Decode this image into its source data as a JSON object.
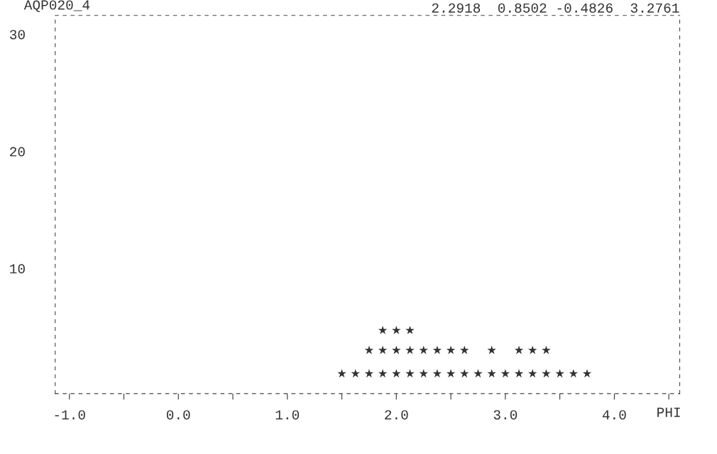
{
  "chart_data": {
    "type": "scatter",
    "title": "AQP020_4",
    "annotations": [
      "2.2918  0.8502 -0.4826  3.2761"
    ],
    "xlabel": "PHI",
    "series": [
      {
        "color": "#333333",
        "x": [
          1.5,
          1.625,
          1.75,
          1.875,
          2.0,
          2.125,
          2.25,
          2.375,
          2.5,
          2.625,
          2.75,
          2.875,
          3.0,
          3.125,
          3.25,
          3.375,
          3.5,
          3.625,
          3.75
        ],
        "values": [
          1,
          1,
          1,
          1,
          1,
          1,
          1,
          1,
          1,
          1,
          1,
          1,
          1,
          1,
          1,
          1,
          1,
          1,
          1
        ]
      },
      {
        "color": "#333333",
        "x": [
          1.75,
          1.875,
          2.0,
          2.125,
          2.25,
          2.375,
          2.5,
          2.625,
          2.875,
          3.125,
          3.25,
          3.375
        ],
        "values": [
          3,
          3,
          3,
          3,
          3,
          3,
          3,
          3,
          3,
          3,
          3,
          3
        ]
      },
      {
        "color": "#333333",
        "x": [
          1.875,
          2.0,
          2.125
        ],
        "values": [
          4.7,
          4.7,
          4.7
        ]
      }
    ],
    "marker": "star",
    "xlim": [
      -1.13,
      4.6
    ],
    "ylim": [
      -0.7,
      31.6
    ],
    "xticks": [
      {
        "value": -1.0,
        "label": "-1.0"
      },
      {
        "value": -0.5,
        "label": null
      },
      {
        "value": 0.0,
        "label": "0.0"
      },
      {
        "value": 0.5,
        "label": null
      },
      {
        "value": 1.0,
        "label": "1.0"
      },
      {
        "value": 1.5,
        "label": null
      },
      {
        "value": 2.0,
        "label": "2.0"
      },
      {
        "value": 2.5,
        "label": null
      },
      {
        "value": 3.0,
        "label": "3.0"
      },
      {
        "value": 3.5,
        "label": null
      },
      {
        "value": 4.0,
        "label": "4.0"
      },
      {
        "value": 4.5,
        "label": null
      }
    ],
    "yticks": [
      10,
      20,
      30
    ],
    "grid": false,
    "legend": false
  }
}
